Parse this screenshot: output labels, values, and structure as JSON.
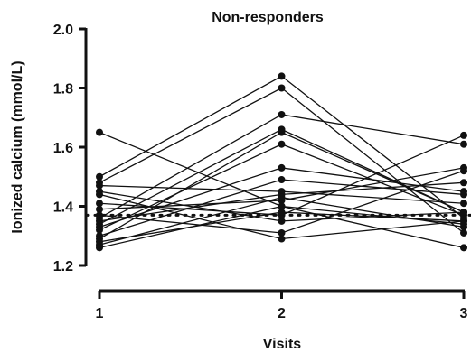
{
  "chart_data": {
    "type": "line",
    "title": "Non-responders",
    "xlabel": "Visits",
    "ylabel": "Ionized calcium (mmol/L)",
    "x": [
      1,
      2,
      3
    ],
    "x_tick_labels": [
      "1",
      "2",
      "3"
    ],
    "ylim": [
      1.2,
      2.0
    ],
    "y_ticks": [
      1.2,
      1.4,
      1.6,
      1.8,
      2.0
    ],
    "y_tick_labels": [
      "1.2",
      "1.4",
      "1.6",
      "1.8",
      "2.0"
    ],
    "grid": false,
    "legend": "none",
    "reference_line": {
      "y": 1.37,
      "style": "dotted"
    },
    "series": [
      {
        "values": [
          1.65,
          1.4,
          1.26
        ]
      },
      {
        "values": [
          1.5,
          1.84,
          1.36
        ]
      },
      {
        "values": [
          1.48,
          1.8,
          1.31
        ]
      },
      {
        "values": [
          1.47,
          1.45,
          1.41
        ]
      },
      {
        "values": [
          1.45,
          1.35,
          1.38
        ]
      },
      {
        "values": [
          1.44,
          1.29,
          1.35
        ]
      },
      {
        "values": [
          1.41,
          1.37,
          1.64
        ]
      },
      {
        "values": [
          1.39,
          1.42,
          1.53
        ]
      },
      {
        "values": [
          1.37,
          1.31,
          1.52
        ]
      },
      {
        "values": [
          1.36,
          1.71,
          1.61
        ]
      },
      {
        "values": [
          1.35,
          1.44,
          1.48
        ]
      },
      {
        "values": [
          1.34,
          1.66,
          1.38
        ]
      },
      {
        "values": [
          1.33,
          1.53,
          1.45
        ]
      },
      {
        "values": [
          1.32,
          1.61,
          1.37
        ]
      },
      {
        "values": [
          1.3,
          1.49,
          1.44
        ]
      },
      {
        "values": [
          1.29,
          1.65,
          1.38
        ]
      },
      {
        "values": [
          1.28,
          1.38,
          1.35
        ]
      },
      {
        "values": [
          1.27,
          1.43,
          1.33
        ]
      },
      {
        "values": [
          1.26,
          1.4,
          1.34
        ]
      }
    ]
  }
}
